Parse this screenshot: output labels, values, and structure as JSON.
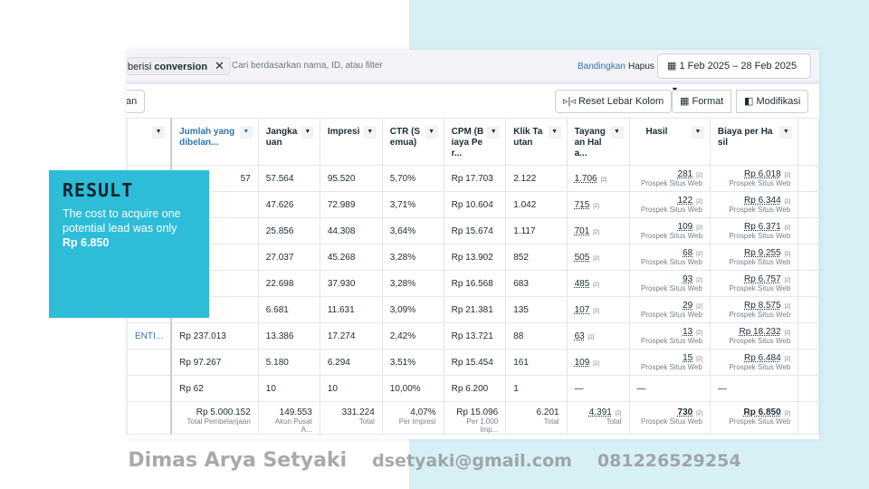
{
  "filter": {
    "chip_prefix": "berisi",
    "chip_value": "conversion",
    "search_placeholder": "Cari berdasarkan nama, ID, atau filter",
    "compare": "Bandingkan",
    "clear": "Hapus",
    "date_range": "1 Feb 2025 – 28 Feb 2025"
  },
  "toolbar": {
    "left_partial": "an",
    "reset": "Reset Lebar Kolom",
    "format": "Format",
    "modify": "Modifikasi"
  },
  "columns": [
    "Jumlah yang dibelan...",
    "Jangkauan",
    "Impresi",
    "CTR (Semua)",
    "CPM (Biaya Per...",
    "Klik Tautan",
    "Tayangan Hala...",
    "Hasil",
    "Biaya per Hasil"
  ],
  "rows": [
    {
      "name": "",
      "spend": "57",
      "reach": "57.564",
      "impr": "95.520",
      "ctr": "5,70%",
      "cpm": "Rp 17.703",
      "clicks": "2.122",
      "views": "1.706",
      "results": "281",
      "cpr": "Rp 6.018"
    },
    {
      "name": "",
      "spend": "",
      "reach": "47.626",
      "impr": "72.989",
      "ctr": "3,71%",
      "cpm": "Rp 10.604",
      "clicks": "1.042",
      "views": "715",
      "results": "122",
      "cpr": "Rp 6.344"
    },
    {
      "name": "",
      "spend": "",
      "reach": "25.856",
      "impr": "44.308",
      "ctr": "3,64%",
      "cpm": "Rp 15.674",
      "clicks": "1.117",
      "views": "701",
      "results": "109",
      "cpr": "Rp 6.371"
    },
    {
      "name": "",
      "spend": "",
      "reach": "27.037",
      "impr": "45.268",
      "ctr": "3,28%",
      "cpm": "Rp 13.902",
      "clicks": "852",
      "views": "505",
      "results": "68",
      "cpr": "Rp 9.255"
    },
    {
      "name": "",
      "spend": "",
      "reach": "22.698",
      "impr": "37.930",
      "ctr": "3,28%",
      "cpm": "Rp 16.568",
      "clicks": "683",
      "views": "485",
      "results": "93",
      "cpr": "Rp 6.757"
    },
    {
      "name": "",
      "spend": "",
      "reach": "6.681",
      "impr": "11.631",
      "ctr": "3,09%",
      "cpm": "Rp 21.381",
      "clicks": "135",
      "views": "107",
      "results": "29",
      "cpr": "Rp 8.575"
    },
    {
      "name": "ENTI...",
      "spend": "Rp 237.013",
      "reach": "13.386",
      "impr": "17.274",
      "ctr": "2,42%",
      "cpm": "Rp 13.721",
      "clicks": "88",
      "views": "63",
      "results": "13",
      "cpr": "Rp 18.232"
    },
    {
      "name": "",
      "spend": "Rp 97.267",
      "reach": "5.180",
      "impr": "6.294",
      "ctr": "3,51%",
      "cpm": "Rp 15.454",
      "clicks": "161",
      "views": "109",
      "results": "15",
      "cpr": "Rp 6.484"
    },
    {
      "name": "",
      "spend": "Rp 62",
      "reach": "10",
      "impr": "10",
      "ctr": "10,00%",
      "cpm": "Rp 6.200",
      "clicks": "1",
      "views": "—",
      "results": "—",
      "cpr": "—"
    }
  ],
  "result_type": "Prospek Situs Web",
  "superscript": "[2]",
  "totals": {
    "spend": "Rp 5.000.152",
    "spend_sub": "Total Pembelanjaan",
    "reach": "149.553",
    "reach_sub": "Akun Pusat A...",
    "impr": "331.224",
    "impr_sub": "Total",
    "ctr": "4,07%",
    "ctr_sub": "Per Impresi",
    "cpm": "Rp 15.096",
    "cpm_sub": "Per 1.000 Imp...",
    "clicks": "6.201",
    "clicks_sub": "Total",
    "views": "4.391",
    "views_sub": "Total",
    "results": "730",
    "results_sub": "Prospek Situs Web",
    "cpr": "Rp 6.850",
    "cpr_sub": "Prospek Situs Web"
  },
  "overlay": {
    "title": "RESULT",
    "text": "The cost to acquire one potential lead was only",
    "highlight": "Rp 6.850",
    "color": "#2dbdd8"
  },
  "watermark": {
    "name": "Dimas Arya Setyaki",
    "email": "dsetyaki@gmail.com",
    "phone": "081226529254"
  }
}
